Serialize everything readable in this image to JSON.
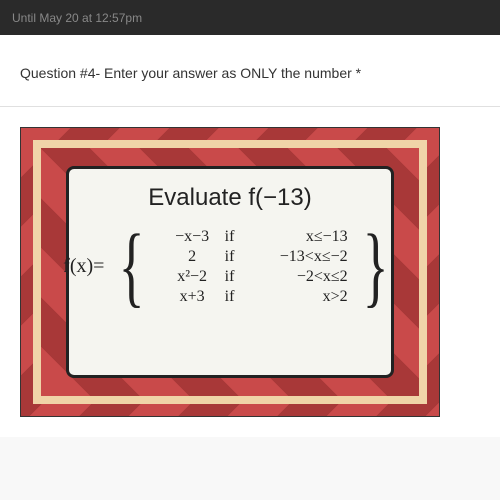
{
  "topBanner": {
    "text": "Until May 20 at 12:57pm"
  },
  "question": {
    "label": "Question #4- Enter your answer as ONLY the number *"
  },
  "mathPanel": {
    "title": "Evaluate f(−13)",
    "fxLabel": "f(x)=",
    "rows": [
      {
        "expr": "−x−3",
        "if": "if",
        "cond": "x≤−13"
      },
      {
        "expr": "2",
        "if": "if",
        "cond": "−13<x≤−2"
      },
      {
        "expr": "x²−2",
        "if": "if",
        "cond": "−2<x≤2"
      },
      {
        "expr": "x+3",
        "if": "if",
        "cond": "x>2"
      }
    ]
  },
  "styles": {
    "frameBg": "#f0d4a8",
    "stripeA": "#c94a4a",
    "stripeB": "#a83838",
    "panelBg": "#f5f5f0",
    "panelBorder": "#222222",
    "titleFontSize": 24,
    "rowFontSize": 16,
    "fxFontSize": 20
  }
}
